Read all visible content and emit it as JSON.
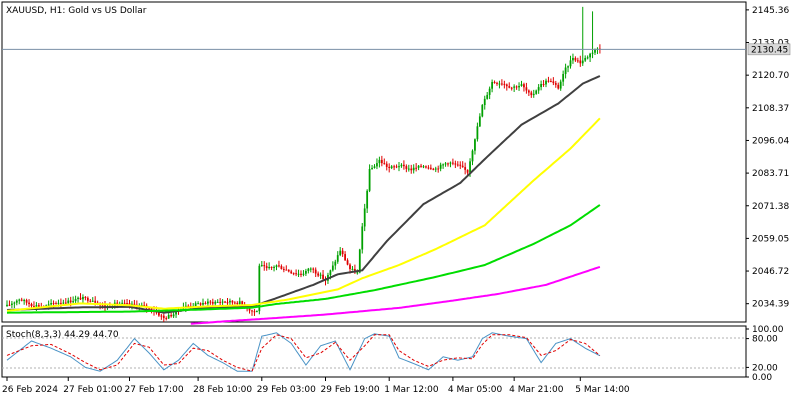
{
  "colors": {
    "background": "#ffffff",
    "axis": "#000000",
    "grid": "#c0c0c0",
    "bull": "#00a000",
    "bear": "#e00000",
    "ma_fast": "#404040",
    "ma_mid": "#ffff00",
    "ma_slow": "#00dd00",
    "ma_long": "#ff00ff",
    "stoch_main": "#4a93c6",
    "stoch_signal": "#e00000",
    "price_label_bg": "#d9d9d9"
  },
  "main_chart": {
    "symbol_title": "XAUUSD, H1:  Gold vs US Dollar",
    "current_price_label": "2130.45",
    "current_price": 2130.45,
    "y_ticks": [
      "2145.36",
      "2133.03",
      "2120.70",
      "2108.37",
      "2096.04",
      "2083.71",
      "2071.38",
      "2059.05",
      "2046.72",
      "2034.39"
    ]
  },
  "stochastic": {
    "title": "Stoch(8,3,3)  44.29  44.70",
    "y_ticks": [
      "100.00",
      "80.00",
      "20.00",
      "0.00"
    ]
  },
  "x_axis": {
    "labels": [
      "26 Feb 2024",
      "27 Feb 01:00",
      "27 Feb 17:00",
      "28 Feb 10:00",
      "29 Feb 03:00",
      "29 Feb 19:00",
      "1 Mar 12:00",
      "4 Mar 05:00",
      "4 Mar 21:00",
      "5 Mar 14:00"
    ]
  },
  "chart_data": [
    {
      "type": "candlestick",
      "title": "XAUUSD, H1:  Gold vs US Dollar",
      "ylim": [
        2028.23,
        2147.2
      ],
      "x_labels": [
        "26 Feb 2024",
        "27 Feb 01:00",
        "27 Feb 17:00",
        "28 Feb 10:00",
        "29 Feb 03:00",
        "29 Feb 19:00",
        "1 Mar 12:00",
        "4 Mar 05:00",
        "4 Mar 21:00",
        "5 Mar 14:00"
      ],
      "close_anchors": [
        [
          0,
          2033.5
        ],
        [
          5,
          2036.2
        ],
        [
          10,
          2034.0
        ],
        [
          15,
          2033.2
        ],
        [
          20,
          2034.8
        ],
        [
          25,
          2035.2
        ],
        [
          30,
          2036.5
        ],
        [
          35,
          2035.8
        ],
        [
          40,
          2033.0
        ],
        [
          45,
          2034.5
        ],
        [
          50,
          2034.0
        ],
        [
          55,
          2033.6
        ],
        [
          60,
          2031.8
        ],
        [
          64,
          2028.9
        ],
        [
          68,
          2030.5
        ],
        [
          72,
          2033.2
        ],
        [
          80,
          2034.6
        ],
        [
          88,
          2035.2
        ],
        [
          95,
          2034.8
        ],
        [
          100,
          2031.6
        ],
        [
          102,
          2031.5
        ],
        [
          103,
          2049.0
        ],
        [
          106,
          2047.5
        ],
        [
          110,
          2048.8
        ],
        [
          116,
          2046.4
        ],
        [
          120,
          2045.5
        ],
        [
          124,
          2047.8
        ],
        [
          127,
          2045.6
        ],
        [
          130,
          2043.2
        ],
        [
          133,
          2048.5
        ],
        [
          136,
          2054.6
        ],
        [
          140,
          2047.5
        ],
        [
          143,
          2046.0
        ],
        [
          145,
          2063.0
        ],
        [
          148,
          2084.7
        ],
        [
          152,
          2088.5
        ],
        [
          156,
          2085.6
        ],
        [
          160,
          2086.6
        ],
        [
          165,
          2085.1
        ],
        [
          170,
          2086.5
        ],
        [
          175,
          2085.4
        ],
        [
          180,
          2087.9
        ],
        [
          185,
          2086.1
        ],
        [
          188,
          2084.2
        ],
        [
          191,
          2097.0
        ],
        [
          194,
          2109.2
        ],
        [
          198,
          2118.1
        ],
        [
          202,
          2117.8
        ],
        [
          206,
          2116.1
        ],
        [
          210,
          2117.0
        ],
        [
          214,
          2112.6
        ],
        [
          217,
          2116.5
        ],
        [
          221,
          2118.9
        ],
        [
          225,
          2116.0
        ],
        [
          228,
          2123.0
        ],
        [
          231,
          2127.5
        ],
        [
          234,
          2125.5
        ],
        [
          237,
          2127.8
        ],
        [
          240,
          2130.5
        ],
        [
          242,
          2130.45
        ]
      ],
      "series": [
        {
          "name": "",
          "color": "#404040",
          "anchors": [
            [
              0,
              2032.0
            ],
            [
              30,
              2033.0
            ],
            [
              50,
              2033.2
            ],
            [
              64,
              2031.0
            ],
            [
              80,
              2032.8
            ],
            [
              100,
              2033.3
            ],
            [
              110,
              2036.5
            ],
            [
              125,
              2041.5
            ],
            [
              135,
              2045.5
            ],
            [
              145,
              2047.0
            ],
            [
              155,
              2058.0
            ],
            [
              170,
              2072.0
            ],
            [
              185,
              2080.0
            ],
            [
              195,
              2089.0
            ],
            [
              210,
              2102.0
            ],
            [
              225,
              2110.0
            ],
            [
              235,
              2117.5
            ],
            [
              242,
              2120.4
            ]
          ]
        },
        {
          "name": "",
          "color": "#ffff00",
          "anchors": [
            [
              0,
              2031.7
            ],
            [
              30,
              2034.5
            ],
            [
              50,
              2033.8
            ],
            [
              64,
              2032.5
            ],
            [
              80,
              2033.3
            ],
            [
              100,
              2033.9
            ],
            [
              115,
              2036.0
            ],
            [
              135,
              2039.8
            ],
            [
              145,
              2044.0
            ],
            [
              160,
              2049.0
            ],
            [
              175,
              2055.0
            ],
            [
              195,
              2064.0
            ],
            [
              215,
              2081.0
            ],
            [
              230,
              2093.0
            ],
            [
              242,
              2104.4
            ]
          ]
        },
        {
          "name": "",
          "color": "#00dd00",
          "anchors": [
            [
              0,
              2031.0
            ],
            [
              50,
              2031.4
            ],
            [
              80,
              2032.2
            ],
            [
              100,
              2032.9
            ],
            [
              110,
              2034.3
            ],
            [
              130,
              2036.2
            ],
            [
              150,
              2039.5
            ],
            [
              175,
              2044.5
            ],
            [
              195,
              2049.0
            ],
            [
              215,
              2057.0
            ],
            [
              230,
              2064.0
            ],
            [
              242,
              2071.7
            ]
          ]
        },
        {
          "name": "",
          "color": "#ff00ff",
          "anchors": [
            [
              75,
              2026.8
            ],
            [
              90,
              2027.8
            ],
            [
              110,
              2029.0
            ],
            [
              130,
              2030.3
            ],
            [
              160,
              2032.8
            ],
            [
              180,
              2035.3
            ],
            [
              200,
              2038.0
            ],
            [
              220,
              2041.5
            ],
            [
              242,
              2048.3
            ]
          ]
        }
      ]
    },
    {
      "type": "line",
      "title": "Stoch(8,3,3)",
      "ylim": [
        0,
        100
      ],
      "y_ticks": [
        100,
        80,
        20,
        0
      ],
      "last_values": {
        "main": 44.29,
        "signal": 44.7
      },
      "series": [
        {
          "name": "",
          "color": "#4a93c6",
          "anchors": [
            [
              0,
              35
            ],
            [
              10,
              75
            ],
            [
              18,
              60
            ],
            [
              26,
              42
            ],
            [
              32,
              20
            ],
            [
              38,
              12
            ],
            [
              45,
              35
            ],
            [
              52,
              80
            ],
            [
              58,
              50
            ],
            [
              64,
              15
            ],
            [
              70,
              35
            ],
            [
              76,
              70
            ],
            [
              82,
              45
            ],
            [
              88,
              30
            ],
            [
              94,
              12
            ],
            [
              100,
              12
            ],
            [
              104,
              85
            ],
            [
              110,
              92
            ],
            [
              116,
              70
            ],
            [
              122,
              25
            ],
            [
              128,
              65
            ],
            [
              134,
              75
            ],
            [
              140,
              15
            ],
            [
              146,
              80
            ],
            [
              150,
              90
            ],
            [
              156,
              85
            ],
            [
              160,
              40
            ],
            [
              166,
              28
            ],
            [
              172,
              15
            ],
            [
              178,
              42
            ],
            [
              184,
              35
            ],
            [
              190,
              42
            ],
            [
              194,
              80
            ],
            [
              198,
              92
            ],
            [
              205,
              85
            ],
            [
              212,
              80
            ],
            [
              218,
              30
            ],
            [
              224,
              70
            ],
            [
              230,
              80
            ],
            [
              236,
              60
            ],
            [
              242,
              44.29
            ]
          ]
        },
        {
          "name": "",
          "color": "#e00000",
          "anchors": [
            [
              0,
              45
            ],
            [
              10,
              65
            ],
            [
              18,
              68
            ],
            [
              26,
              48
            ],
            [
              32,
              30
            ],
            [
              38,
              15
            ],
            [
              45,
              25
            ],
            [
              52,
              70
            ],
            [
              58,
              62
            ],
            [
              64,
              25
            ],
            [
              70,
              28
            ],
            [
              76,
              60
            ],
            [
              82,
              55
            ],
            [
              88,
              35
            ],
            [
              94,
              20
            ],
            [
              100,
              12
            ],
            [
              104,
              60
            ],
            [
              110,
              88
            ],
            [
              116,
              80
            ],
            [
              122,
              40
            ],
            [
              128,
              50
            ],
            [
              134,
              72
            ],
            [
              140,
              35
            ],
            [
              146,
              65
            ],
            [
              150,
              88
            ],
            [
              156,
              88
            ],
            [
              160,
              55
            ],
            [
              166,
              35
            ],
            [
              172,
              22
            ],
            [
              178,
              35
            ],
            [
              184,
              40
            ],
            [
              190,
              38
            ],
            [
              194,
              68
            ],
            [
              198,
              88
            ],
            [
              205,
              88
            ],
            [
              212,
              82
            ],
            [
              218,
              45
            ],
            [
              224,
              55
            ],
            [
              230,
              78
            ],
            [
              236,
              70
            ],
            [
              242,
              44.7
            ]
          ]
        }
      ]
    }
  ]
}
